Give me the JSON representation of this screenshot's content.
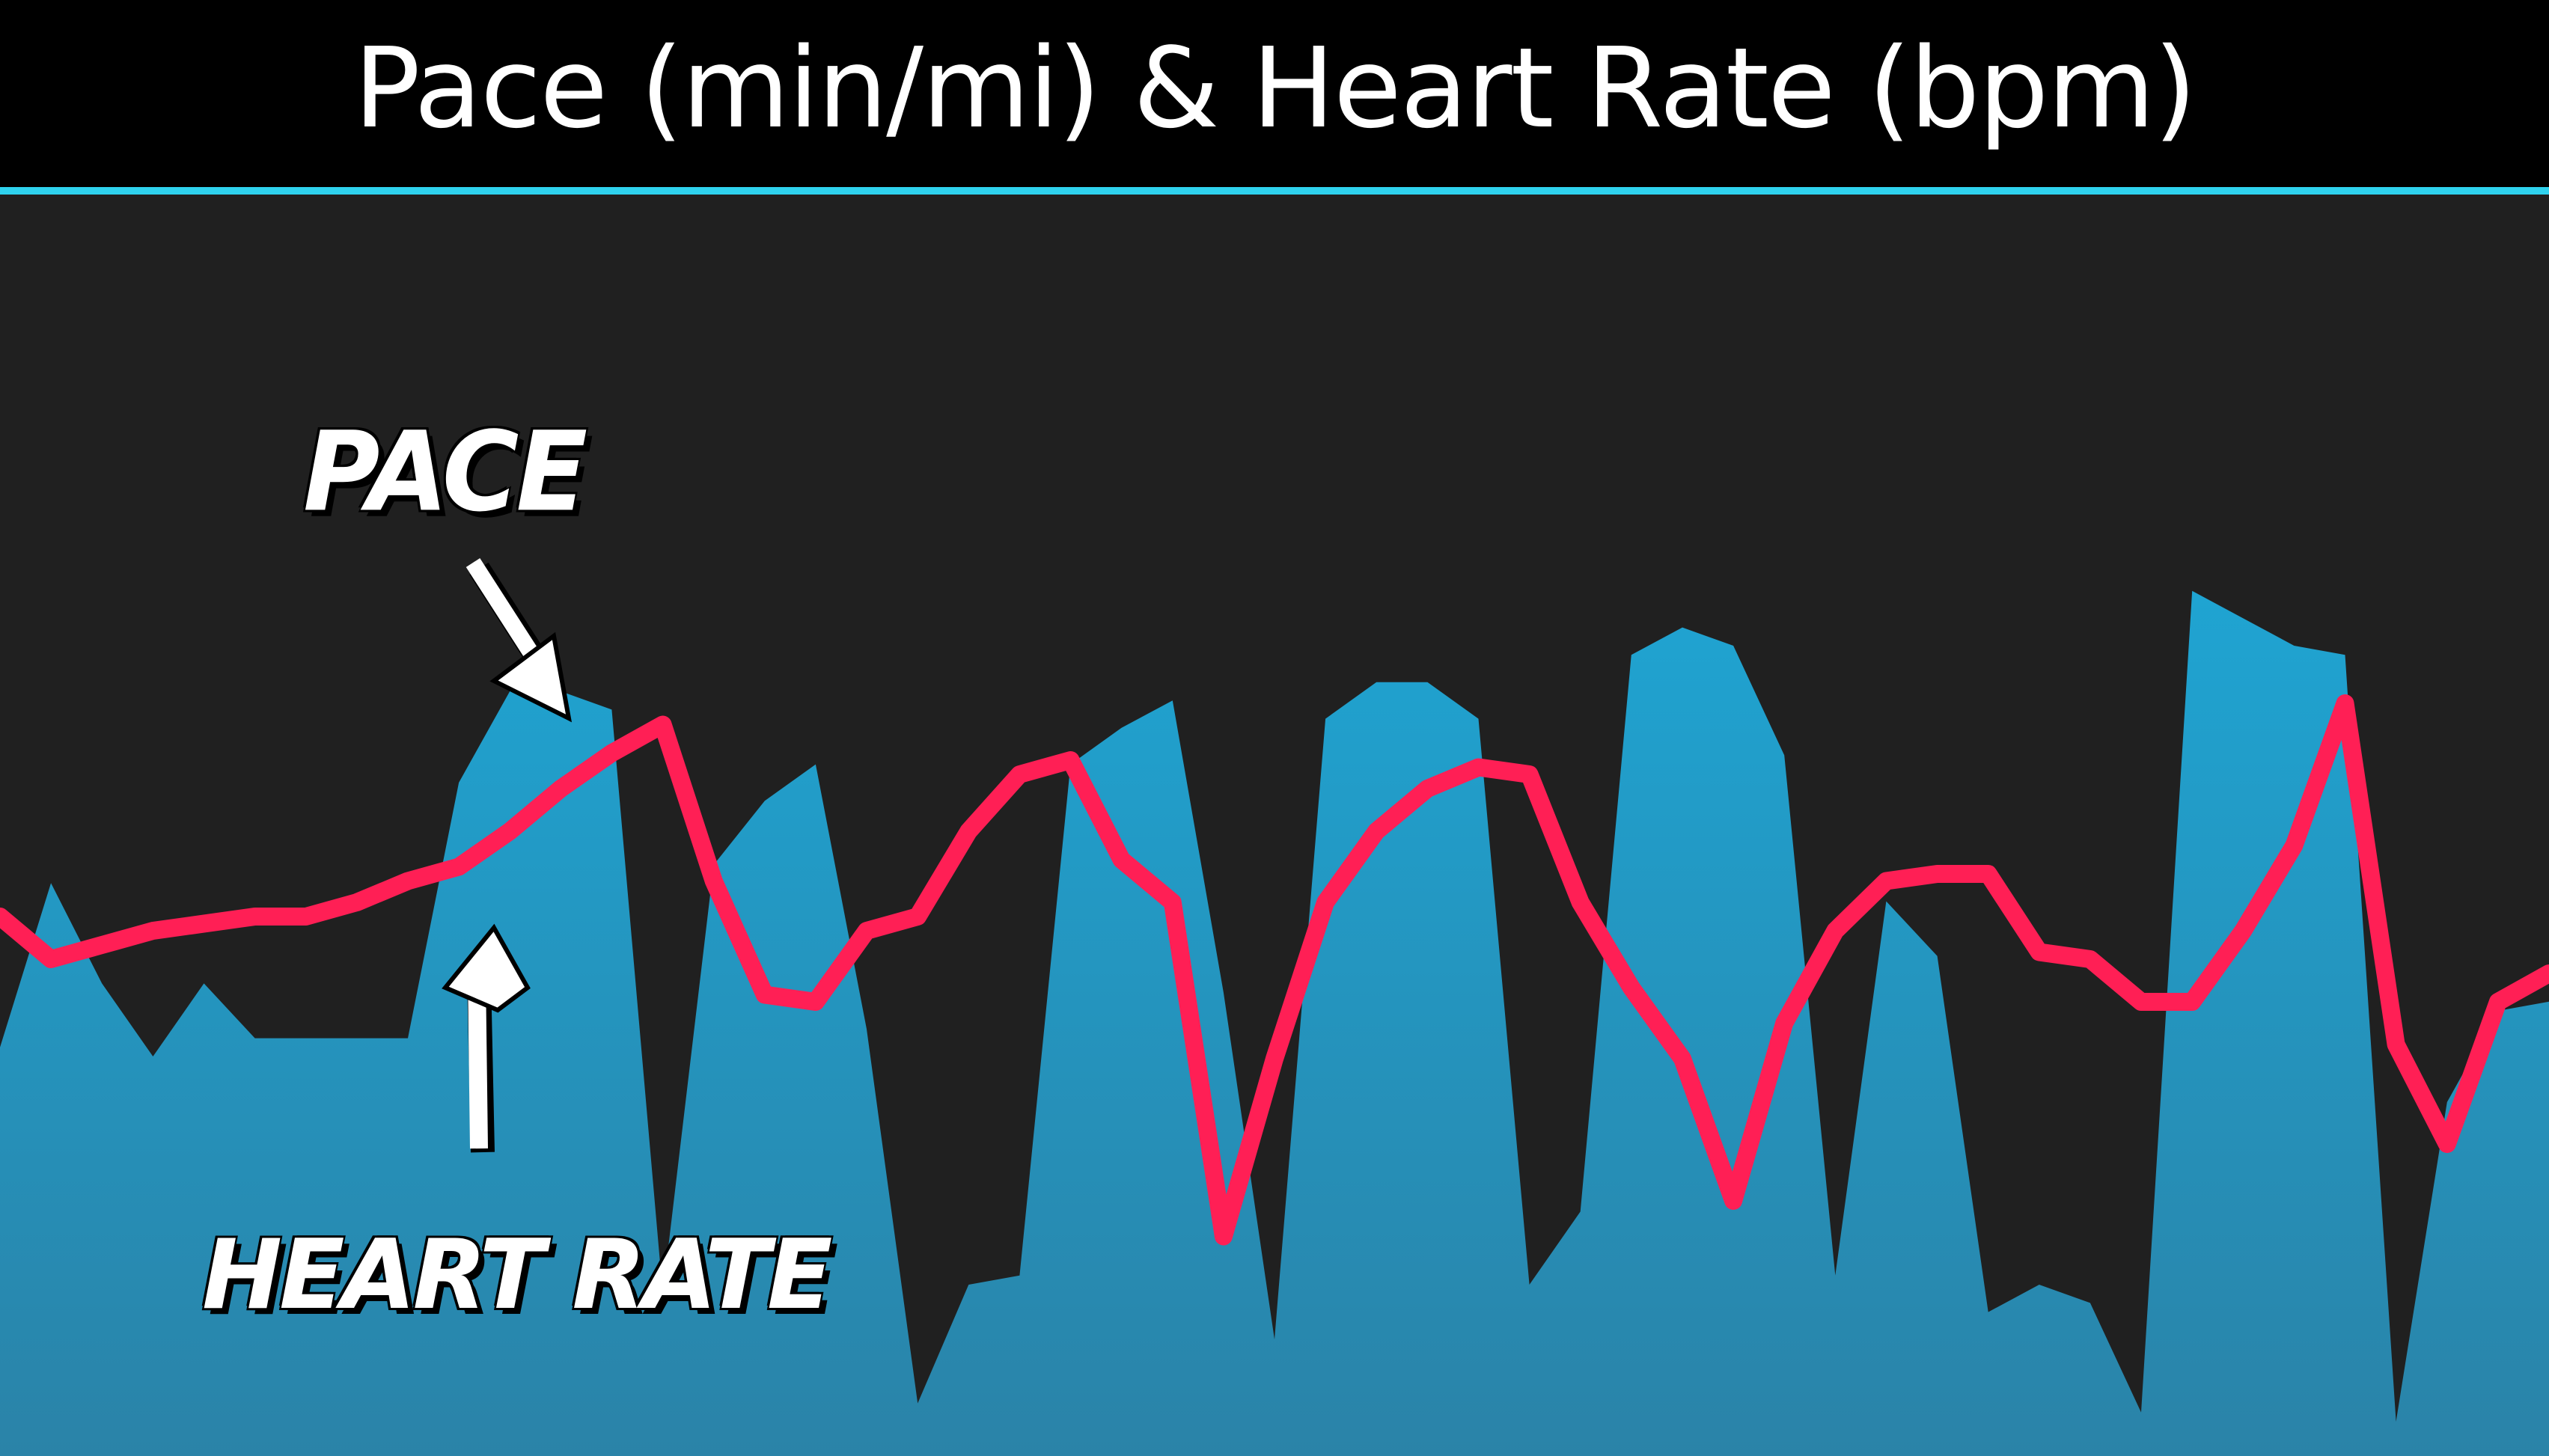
{
  "title": "Pace (min/mi) & Heart Rate (bpm)",
  "annotations": {
    "pace_label": "PACE",
    "heart_rate_label": "HEART RATE"
  },
  "colors": {
    "background": "#000000",
    "plot_background": "#202020",
    "accent_line": "#2fd2ee",
    "pace_fill_top": "#1fa4d2",
    "pace_fill_bottom": "#2a83a8",
    "heart_rate_line": "#ff1f55",
    "annotation_text": "#ffffff"
  },
  "chart_data": {
    "type": "area",
    "title": "Pace (min/mi) & Heart Rate (bpm)",
    "xlabel": "",
    "ylabel": "",
    "grid": false,
    "legend": "none",
    "x": [
      0,
      2,
      4,
      6,
      8,
      10,
      12,
      14,
      16,
      18,
      20,
      22,
      24,
      26,
      28,
      30,
      32,
      34,
      36,
      38,
      40,
      42,
      44,
      46,
      48,
      50,
      52,
      54,
      56,
      58,
      60,
      62,
      64,
      66,
      68,
      70,
      72,
      74,
      76,
      78,
      80,
      82,
      84,
      86,
      88,
      90,
      92,
      94,
      96,
      98,
      100
    ],
    "series": [
      {
        "name": "Pace",
        "kind": "area",
        "values": [
          41,
          59,
          48,
          40,
          48,
          42,
          42,
          42,
          42,
          70,
          80,
          80,
          78,
          14,
          61,
          68,
          72,
          43,
          2,
          15,
          16,
          72,
          76,
          79,
          47,
          9,
          77,
          81,
          81,
          77,
          15,
          23,
          84,
          87,
          85,
          73,
          16,
          57,
          51,
          12,
          15,
          13,
          1,
          91,
          88,
          85,
          84,
          0,
          35,
          45,
          46
        ]
      },
      {
        "name": "Heart Rate",
        "kind": "line",
        "values": [
          50,
          44,
          46,
          48,
          49,
          50,
          50,
          52,
          55,
          57,
          62,
          68,
          73,
          77,
          55,
          39,
          38,
          48,
          50,
          62,
          70,
          72,
          58,
          52,
          5,
          30,
          52,
          62,
          68,
          71,
          70,
          52,
          40,
          30,
          10,
          35,
          48,
          55,
          56,
          56,
          45,
          44,
          38,
          38,
          48,
          60,
          80,
          32,
          18,
          38,
          42
        ]
      }
    ]
  }
}
